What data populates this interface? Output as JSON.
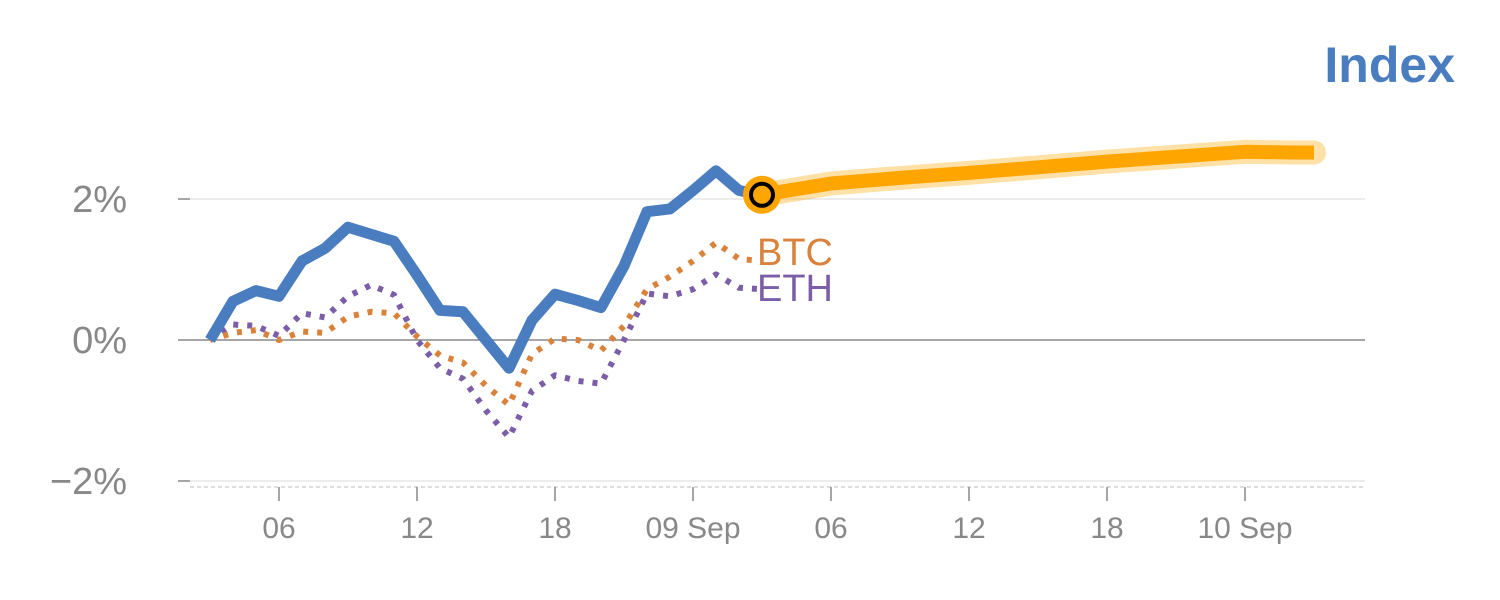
{
  "chart_data": {
    "type": "line",
    "title": "Index",
    "xlabel": "",
    "ylabel": "",
    "ylim": [
      -2,
      3
    ],
    "y_ticks": [
      {
        "value": 2,
        "label": "2%"
      },
      {
        "value": 0,
        "label": "0%"
      },
      {
        "value": -2,
        "label": "−2%"
      }
    ],
    "x_ticks": [
      {
        "hour": 6,
        "label": "06"
      },
      {
        "hour": 12,
        "label": "12"
      },
      {
        "hour": 18,
        "label": "18"
      },
      {
        "hour": 24,
        "label": "09 Sep"
      },
      {
        "hour": 30,
        "label": "06"
      },
      {
        "hour": 36,
        "label": "12"
      },
      {
        "hour": 42,
        "label": "18"
      },
      {
        "hour": 48,
        "label": "10 Sep"
      }
    ],
    "xlim_hours": [
      -1,
      52
    ],
    "grid": "horizontal",
    "legend": "inline labels at line ends",
    "colors": {
      "index": "#4a7dbf",
      "btc": "#d9823b",
      "eth": "#7b5ea7",
      "forecast": "#ffa500",
      "title": "#4a7dbf"
    },
    "series": [
      {
        "key": "index",
        "style": "solid",
        "x": [
          3,
          4,
          5,
          6,
          7,
          8,
          9,
          10,
          11,
          12,
          13,
          14,
          15,
          16,
          17,
          18,
          19,
          20,
          21,
          22,
          23,
          24,
          25,
          26,
          27
        ],
        "y": [
          0.0,
          0.55,
          0.7,
          0.62,
          1.12,
          1.3,
          1.6,
          1.5,
          1.4,
          0.92,
          0.42,
          0.4,
          0.0,
          -0.4,
          0.28,
          0.65,
          0.56,
          0.46,
          1.05,
          1.82,
          1.86,
          2.12,
          2.4,
          2.12,
          2.06
        ]
      },
      {
        "key": "btc",
        "name": "BTC",
        "style": "dotted",
        "x": [
          3,
          4,
          5,
          6,
          7,
          8,
          9,
          10,
          11,
          12,
          13,
          14,
          15,
          16,
          17,
          18,
          19,
          20,
          21,
          22,
          23,
          24,
          25,
          26,
          27
        ],
        "y": [
          0.0,
          0.1,
          0.14,
          0.0,
          0.12,
          0.1,
          0.33,
          0.4,
          0.38,
          0.05,
          -0.22,
          -0.32,
          -0.65,
          -0.92,
          -0.2,
          0.02,
          0.0,
          -0.15,
          0.2,
          0.72,
          0.9,
          1.12,
          1.38,
          1.15,
          1.12
        ]
      },
      {
        "key": "eth",
        "name": "ETH",
        "style": "dotted",
        "x": [
          3,
          4,
          5,
          6,
          7,
          8,
          9,
          10,
          11,
          12,
          13,
          14,
          15,
          16,
          17,
          18,
          19,
          20,
          21,
          22,
          23,
          24,
          25,
          26,
          27
        ],
        "y": [
          0.0,
          0.22,
          0.2,
          0.06,
          0.38,
          0.32,
          0.62,
          0.78,
          0.64,
          0.0,
          -0.4,
          -0.55,
          -1.0,
          -1.38,
          -0.72,
          -0.5,
          -0.58,
          -0.62,
          0.0,
          0.66,
          0.62,
          0.72,
          0.93,
          0.74,
          0.72
        ]
      },
      {
        "key": "forecast",
        "style": "band",
        "x": [
          27,
          30,
          33,
          36,
          39,
          42,
          45,
          48,
          50,
          51
        ],
        "y": [
          2.06,
          2.22,
          2.3,
          2.37,
          2.45,
          2.53,
          2.6,
          2.67,
          2.66,
          2.66
        ]
      }
    ],
    "marker": {
      "x": 27,
      "y": 2.06
    }
  }
}
